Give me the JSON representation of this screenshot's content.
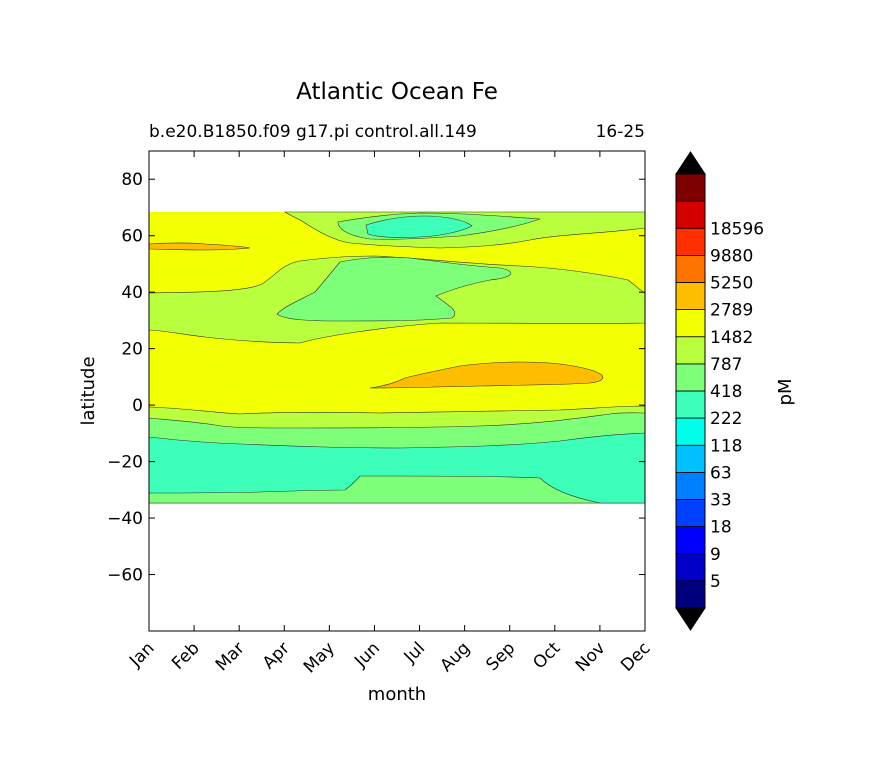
{
  "chart_data": {
    "type": "heatmap",
    "title": "Atlantic Ocean Fe",
    "subtitle_left": "b.e20.B1850.f09 g17.pi control.all.149",
    "subtitle_right": "16-25",
    "xlabel": "month",
    "ylabel": "latitude",
    "x_ticks": [
      "Jan",
      "Feb",
      "Mar",
      "Apr",
      "May",
      "Jun",
      "Jul",
      "Aug",
      "Sep",
      "Oct",
      "Nov",
      "Dec"
    ],
    "y_ticks": [
      80,
      60,
      40,
      20,
      0,
      -20,
      -40,
      -60
    ],
    "ylim": [
      -80,
      90
    ],
    "data_lat_range": [
      -34,
      69
    ],
    "colorbar": {
      "label": "pM",
      "extend": "both",
      "levels": [
        5,
        9,
        18,
        33,
        63,
        118,
        222,
        418,
        787,
        1482,
        2789,
        5250,
        9880,
        18596
      ],
      "tick_labels": [
        "5",
        "9",
        "18",
        "33",
        "63",
        "118",
        "222",
        "418",
        "787",
        "1482",
        "2789",
        "5250",
        "9880",
        "18596"
      ],
      "colors": [
        "#00007f",
        "#0000c8",
        "#0000ff",
        "#0040ff",
        "#0080ff",
        "#00c0ff",
        "#00ffe8",
        "#3dffb9",
        "#7dff7a",
        "#b9ff3d",
        "#f3ff03",
        "#ffbd00",
        "#ff7300",
        "#ff3000",
        "#d40000",
        "#7f0000"
      ],
      "under_color": "#000000",
      "over_color": "#000000"
    },
    "regions": [
      {
        "name": "background-787-1482",
        "band": "787-1482",
        "color": "#f3ff03"
      },
      {
        "name": "band-418-787",
        "band": "418-787",
        "color": "#b9ff3d"
      },
      {
        "name": "band-222-418",
        "band": "222-418",
        "color": "#7dff7a"
      },
      {
        "name": "band-118-222",
        "band": "118-222",
        "color": "#3dffb9"
      },
      {
        "name": "band-1482-2789",
        "band": "1482-2789",
        "color": "#ffbd00"
      }
    ]
  }
}
